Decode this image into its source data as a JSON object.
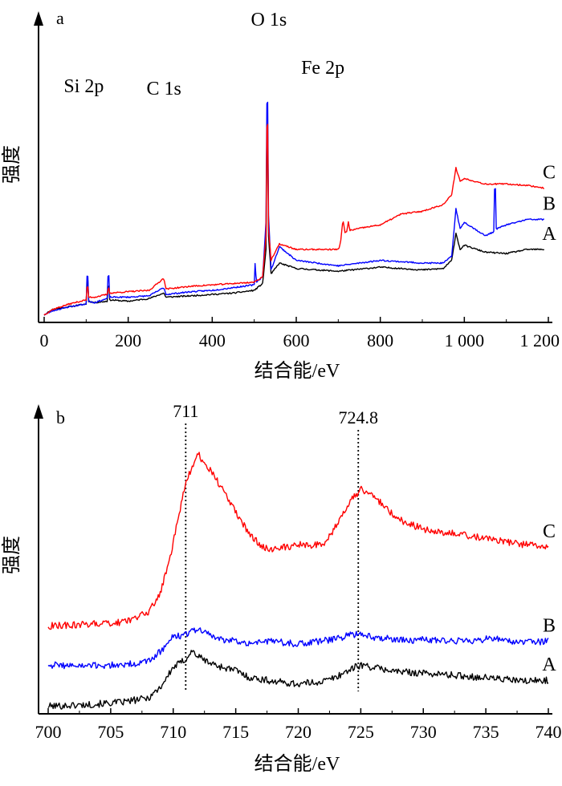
{
  "chart_data": [
    {
      "panel": "a",
      "type": "line",
      "xlabel": "结合能/eV",
      "ylabel": "强度",
      "xlim": [
        0,
        1200
      ],
      "xticks": [
        0,
        200,
        400,
        600,
        800,
        1000,
        1200
      ],
      "xtick_labels": [
        "0",
        "200",
        "400",
        "600",
        "800",
        "1 000",
        "1 200"
      ],
      "yticks": [],
      "grid": false,
      "legend": "none",
      "peak_labels": [
        {
          "text": "Si 2p",
          "x": 102
        },
        {
          "text": "C 1s",
          "x": 285
        },
        {
          "text": "O 1s",
          "x": 531
        },
        {
          "text": "Fe 2p",
          "x": 711
        }
      ],
      "series": [
        {
          "name": "A",
          "color": "#000000",
          "x": [
            0,
            20,
            60,
            100,
            103,
            106,
            120,
            150,
            153,
            156,
            200,
            250,
            285,
            290,
            350,
            400,
            450,
            500,
            520,
            528,
            531,
            534,
            540,
            560,
            600,
            700,
            800,
            900,
            950,
            970,
            980,
            990,
            1000,
            1050,
            1100,
            1150,
            1190
          ],
          "y": [
            0.2,
            0.6,
            0.8,
            1.0,
            3.5,
            1.2,
            1.1,
            1.2,
            2.8,
            1.3,
            1.2,
            1.4,
            1.8,
            1.5,
            1.6,
            1.7,
            1.8,
            2.0,
            2.5,
            5.0,
            16.8,
            6.0,
            3.2,
            4.0,
            3.6,
            3.4,
            3.7,
            3.5,
            3.6,
            4.2,
            6.2,
            5.0,
            5.3,
            4.8,
            4.7,
            5.0,
            5.0
          ]
        },
        {
          "name": "B",
          "color": "#0000ff",
          "x": [
            0,
            20,
            60,
            100,
            103,
            106,
            120,
            150,
            153,
            156,
            200,
            250,
            285,
            290,
            350,
            400,
            450,
            500,
            502,
            505,
            520,
            528,
            531,
            534,
            540,
            560,
            600,
            700,
            800,
            900,
            950,
            970,
            980,
            990,
            1000,
            1050,
            1070,
            1073,
            1076,
            1100,
            1150,
            1190
          ],
          "y": [
            0.2,
            0.5,
            0.8,
            1.0,
            4.0,
            1.2,
            1.1,
            1.4,
            3.8,
            1.5,
            1.5,
            1.6,
            2.2,
            1.7,
            1.9,
            2.0,
            2.2,
            2.4,
            4.0,
            2.6,
            3.0,
            7.0,
            20.0,
            7.5,
            3.5,
            5.2,
            4.2,
            3.8,
            4.2,
            4.0,
            4.0,
            4.5,
            8.0,
            6.5,
            7.0,
            6.0,
            6.3,
            11.0,
            6.5,
            6.8,
            7.2,
            7.2
          ]
        },
        {
          "name": "C",
          "color": "#ff0000",
          "x": [
            0,
            20,
            60,
            100,
            103,
            106,
            120,
            150,
            153,
            156,
            200,
            250,
            285,
            290,
            350,
            400,
            450,
            500,
            520,
            528,
            531,
            534,
            540,
            560,
            600,
            700,
            705,
            711,
            716,
            720,
            724,
            728,
            760,
            800,
            850,
            900,
            950,
            970,
            980,
            990,
            1000,
            1050,
            1100,
            1150,
            1190
          ],
          "y": [
            0.2,
            0.6,
            1.0,
            1.3,
            2.6,
            1.5,
            1.5,
            1.7,
            2.3,
            1.8,
            1.9,
            2.0,
            2.9,
            2.1,
            2.3,
            2.4,
            2.5,
            2.6,
            3.0,
            6.0,
            18.0,
            6.5,
            4.2,
            5.4,
            5.0,
            5.0,
            5.4,
            7.2,
            6.2,
            6.3,
            7.0,
            6.4,
            6.6,
            6.8,
            7.6,
            7.8,
            8.3,
            9.0,
            11.0,
            10.0,
            10.2,
            9.8,
            9.8,
            9.7,
            9.5
          ]
        }
      ]
    },
    {
      "panel": "b",
      "type": "line",
      "xlabel": "结合能/eV",
      "ylabel": "强度",
      "xlim": [
        700,
        740
      ],
      "xticks": [
        700,
        705,
        710,
        715,
        720,
        725,
        730,
        735,
        740
      ],
      "xtick_labels": [
        "700",
        "705",
        "710",
        "715",
        "720",
        "725",
        "730",
        "735",
        "740"
      ],
      "yticks": [],
      "grid": false,
      "legend": "none",
      "reference_lines": [
        {
          "x": 711,
          "label": "711"
        },
        {
          "x": 724.8,
          "label": "724.8"
        }
      ],
      "series": [
        {
          "name": "A",
          "color": "#000000",
          "x": [
            700,
            703,
            706,
            708,
            709,
            710,
            711,
            711.5,
            712,
            713,
            714,
            715,
            716,
            718,
            720,
            722,
            723,
            724,
            725,
            726,
            728,
            730,
            733,
            736,
            738,
            740
          ],
          "y": [
            0.2,
            0.3,
            0.5,
            0.8,
            1.6,
            3.0,
            3.6,
            4.2,
            3.8,
            3.3,
            3.0,
            2.8,
            2.3,
            2.0,
            1.8,
            2.0,
            2.3,
            2.8,
            3.2,
            3.0,
            2.7,
            2.6,
            2.4,
            2.2,
            2.0,
            2.1
          ]
        },
        {
          "name": "B",
          "color": "#0000ff",
          "x": [
            700,
            703,
            706,
            708,
            709,
            710,
            711,
            712,
            713,
            714,
            716,
            718,
            720,
            722,
            724,
            725,
            726,
            728,
            730,
            733,
            736,
            738,
            740
          ],
          "y": [
            3.2,
            3.1,
            3.2,
            3.4,
            4.2,
            5.2,
            5.4,
            5.8,
            5.3,
            5.0,
            4.8,
            4.9,
            4.7,
            4.9,
            5.3,
            5.5,
            5.2,
            5.0,
            5.0,
            4.9,
            5.1,
            4.8,
            4.9
          ]
        },
        {
          "name": "C",
          "color": "#ff0000",
          "x": [
            700,
            703,
            706,
            707,
            708,
            709,
            710,
            711,
            712,
            713,
            714,
            715,
            716,
            717,
            718,
            719,
            720,
            721,
            722,
            723,
            724,
            725,
            726,
            727,
            728,
            730,
            733,
            736,
            738,
            740
          ],
          "y": [
            6.0,
            6.1,
            6.3,
            6.6,
            7.0,
            8.4,
            12.0,
            16.5,
            18.4,
            17.2,
            15.8,
            14.2,
            12.8,
            11.8,
            11.5,
            11.7,
            11.9,
            11.8,
            11.9,
            13.2,
            14.8,
            15.9,
            15.5,
            14.5,
            13.7,
            13.0,
            12.6,
            12.2,
            11.9,
            11.7
          ]
        }
      ]
    }
  ]
}
